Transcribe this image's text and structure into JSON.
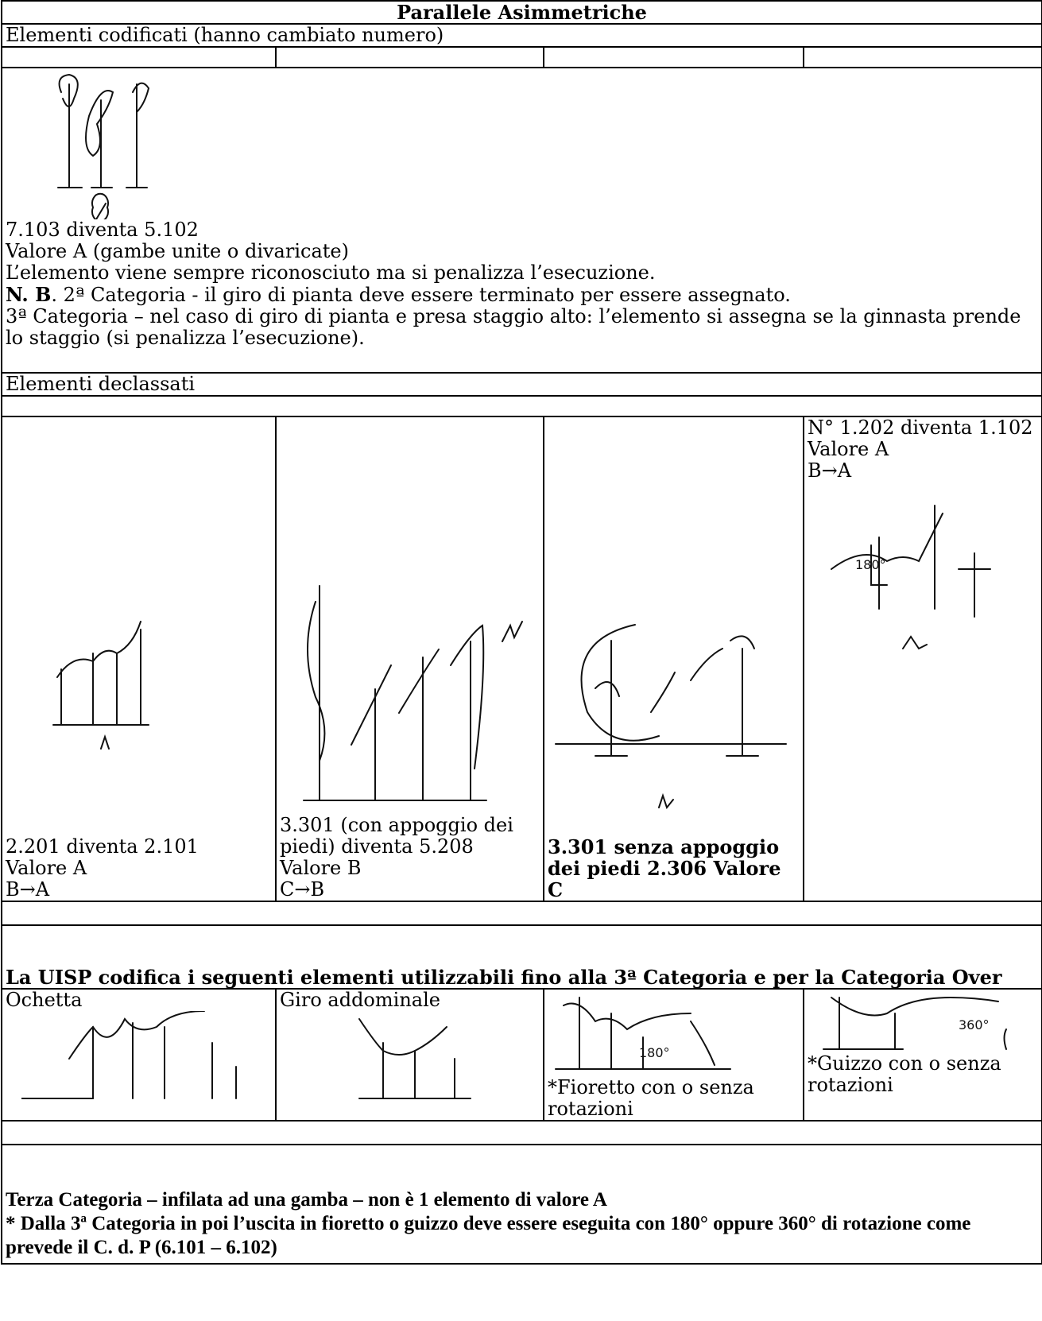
{
  "title": "Parallele Asimmetriche",
  "codified": {
    "heading": "Elementi codificati (hanno cambiato numero)",
    "lines": [
      "7.103 diventa 5.102",
      "Valore A (gambe unite o divaricate)",
      "L’elemento viene sempre riconosciuto ma si penalizza l’esecuzione."
    ],
    "nb": {
      "bold": "N. B",
      "text": ". 2ª Categoria - il giro di pianta deve essere terminato per essere assegnato."
    },
    "note": "3ª Categoria – nel caso di giro di pianta e presa staggio alto: l’elemento si assegna se la ginnasta prende lo staggio (si penalizza l’esecuzione)."
  },
  "declassified": {
    "heading": "Elementi declassati",
    "cells": [
      {
        "lines": [
          "2.201 diventa 2.101",
          "Valore A",
          "B→A"
        ]
      },
      {
        "lines": [
          "3.301 (con appoggio dei piedi) diventa 5.208",
          "Valore B",
          "C→B"
        ]
      },
      {
        "lines": [
          "3.301 senza appoggio dei piedi 2.306 Valore C"
        ]
      },
      {
        "lines": [
          "N° 1.202 diventa 1.102",
          "Valore A",
          "B→A"
        ],
        "figure_label": "180°"
      }
    ]
  },
  "uisp": {
    "heading": "La UISP codifica i seguenti elementi utilizzabili fino alla 3ª Categoria e per la Categoria Over",
    "items": [
      {
        "label": "Ochetta"
      },
      {
        "label": "Giro addominale"
      },
      {
        "label": "*Fioretto con o senza rotazioni",
        "figure_label": "180°"
      },
      {
        "label": "*Guizzo con o senza rotazioni",
        "figure_label": "360°"
      }
    ]
  },
  "notes": [
    "Terza Categoria – infilata ad una gamba – non è 1 elemento di valore A",
    "* Dalla 3ª Categoria in poi l’uscita in fioretto o guizzo deve essere eseguita con 180° oppure 360° di rotazione come prevede il C. d. P  (6.101 – 6.102)"
  ]
}
